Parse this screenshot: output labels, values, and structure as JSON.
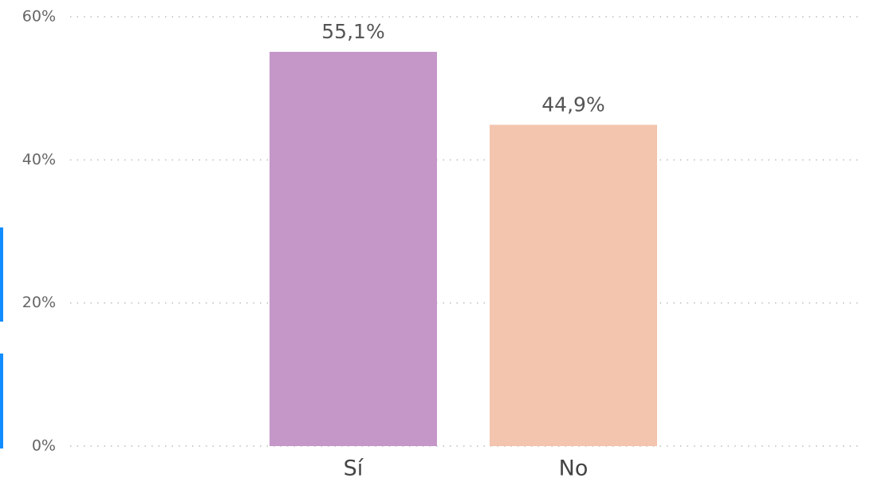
{
  "chart_data": {
    "type": "bar",
    "categories": [
      "Sí",
      "No"
    ],
    "values": [
      55.1,
      44.9
    ],
    "value_labels": [
      "55,1%",
      "44,9%"
    ],
    "colors": [
      "#c597c9",
      "#f3c4ae"
    ],
    "ylim": [
      0,
      60
    ],
    "yticks": [
      {
        "value": 0,
        "label": "0%"
      },
      {
        "value": 20,
        "label": "20%"
      },
      {
        "value": 40,
        "label": "40%"
      },
      {
        "value": 60,
        "label": "60%"
      }
    ],
    "grid": true
  }
}
